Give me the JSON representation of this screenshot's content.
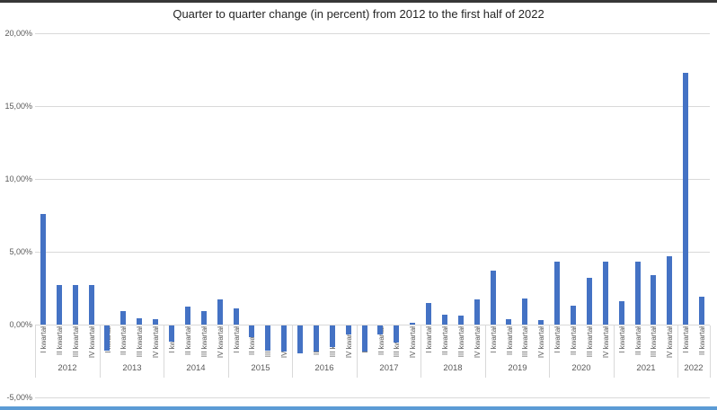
{
  "window": {
    "top_strip_color": "#373737",
    "bottom_strip_color": "#5b9bd5"
  },
  "chart_data": {
    "type": "bar",
    "title": "Quarter to quarter change (in percent) from 2012 to the first half of 2022",
    "bar_color": "#4472c4",
    "legend": "none",
    "gridlines": true,
    "y_axis": {
      "min": -5,
      "max": 20,
      "tick_labels": [
        "20,00%",
        "15,00%",
        "10,00%",
        "5,00%",
        "0,00%",
        "-5,00%"
      ],
      "tick_values": [
        20,
        15,
        10,
        5,
        0,
        -5
      ]
    },
    "x_axis": {
      "quarter_labels": [
        "I kwartał",
        "II kwartał",
        "III kwartał",
        "IV kwartał"
      ]
    },
    "groups": [
      {
        "year": "2012",
        "values": [
          7.6,
          2.7,
          2.7,
          2.7
        ]
      },
      {
        "year": "2013",
        "values": [
          -1.7,
          0.95,
          0.45,
          0.35
        ]
      },
      {
        "year": "2014",
        "values": [
          -1.1,
          1.25,
          0.9,
          1.7
        ]
      },
      {
        "year": "2015",
        "values": [
          1.1,
          -0.8,
          -1.7,
          -1.8
        ]
      },
      {
        "year": "2016",
        "values": [
          -1.9,
          -1.8,
          -1.5,
          -0.6
        ]
      },
      {
        "year": "2017",
        "values": [
          -1.8,
          -0.6,
          -1.2,
          0.15
        ]
      },
      {
        "year": "2018",
        "values": [
          1.5,
          0.7,
          0.6,
          1.75
        ]
      },
      {
        "year": "2019",
        "values": [
          3.7,
          0.4,
          1.8,
          0.3
        ]
      },
      {
        "year": "2020",
        "values": [
          4.3,
          1.3,
          3.2,
          4.3
        ]
      },
      {
        "year": "2021",
        "values": [
          1.6,
          4.3,
          3.4,
          4.7
        ]
      },
      {
        "year": "2022",
        "values": [
          17.3,
          1.9
        ]
      }
    ]
  }
}
